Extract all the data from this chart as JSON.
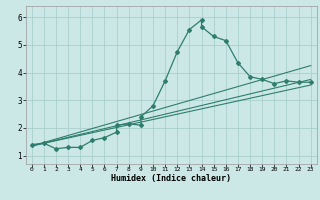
{
  "xlabel": "Humidex (Indice chaleur)",
  "bg_color": "#cce8e6",
  "grid_color": "#aacfcc",
  "line_color": "#2e7d6e",
  "xlim": [
    -0.5,
    23.5
  ],
  "ylim": [
    0.7,
    6.4
  ],
  "xticks": [
    0,
    1,
    2,
    3,
    4,
    5,
    6,
    7,
    8,
    9,
    10,
    11,
    12,
    13,
    14,
    15,
    16,
    17,
    18,
    19,
    20,
    21,
    22,
    23
  ],
  "yticks": [
    1,
    2,
    3,
    4,
    5,
    6
  ],
  "main_series": [
    [
      0,
      1.4
    ],
    [
      1,
      1.45
    ],
    [
      2,
      1.25
    ],
    [
      3,
      1.3
    ],
    [
      4,
      1.3
    ],
    [
      5,
      1.55
    ],
    [
      6,
      1.65
    ],
    [
      7,
      1.85
    ],
    [
      7,
      2.1
    ],
    [
      8,
      2.15
    ],
    [
      9,
      2.1
    ],
    [
      9,
      2.4
    ],
    [
      10,
      2.8
    ],
    [
      11,
      3.7
    ],
    [
      12,
      4.75
    ],
    [
      13,
      5.55
    ],
    [
      14,
      5.9
    ],
    [
      14,
      5.65
    ],
    [
      15,
      5.3
    ],
    [
      16,
      5.15
    ],
    [
      17,
      4.35
    ],
    [
      18,
      3.85
    ],
    [
      19,
      3.75
    ],
    [
      20,
      3.6
    ],
    [
      21,
      3.7
    ],
    [
      22,
      3.65
    ],
    [
      23,
      3.65
    ]
  ],
  "reg_lines": [
    [
      [
        0,
        1.35
      ],
      [
        23,
        4.25
      ]
    ],
    [
      [
        0,
        1.35
      ],
      [
        23,
        3.75
      ]
    ],
    [
      [
        0,
        1.35
      ],
      [
        23,
        3.55
      ]
    ]
  ]
}
